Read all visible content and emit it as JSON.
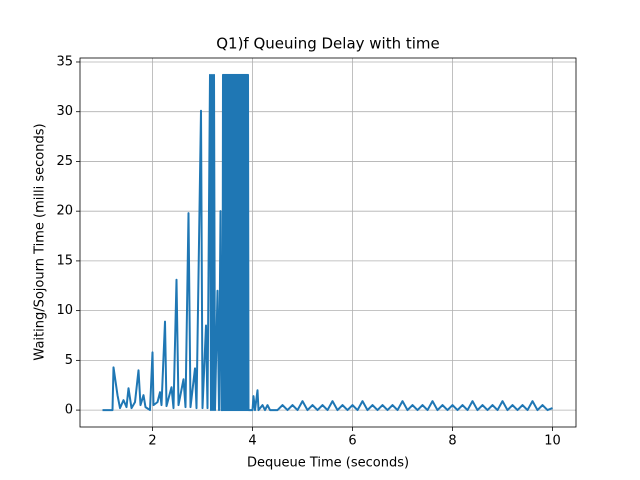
{
  "chart_data": {
    "type": "line",
    "title": "Q1)f Queuing Delay with time",
    "x_label": "Dequeue Time (seconds)",
    "y_label": "Waiting/Sojourn Time (milli seconds)",
    "xlim": [
      0.55,
      10.47
    ],
    "ylim": [
      -1.7,
      35.4
    ],
    "xticks": [
      2,
      4,
      6,
      8,
      10
    ],
    "yticks": [
      0,
      5,
      10,
      15,
      20,
      25,
      30,
      35
    ],
    "grid": true,
    "series": [
      {
        "color": "#1f77b4",
        "x": [
          1.0,
          1.2,
          1.22,
          1.3,
          1.35,
          1.42,
          1.48,
          1.52,
          1.58,
          1.65,
          1.72,
          1.76,
          1.82,
          1.86,
          1.95,
          2.0,
          2.02,
          2.1,
          2.15,
          2.18,
          2.25,
          2.28,
          2.38,
          2.42,
          2.48,
          2.52,
          2.62,
          2.66,
          2.72,
          2.76,
          2.85,
          2.88,
          2.97,
          3.0,
          3.07,
          3.1,
          3.15,
          3.17,
          3.19,
          3.21,
          3.23,
          3.25,
          3.3,
          3.33,
          3.36,
          3.38,
          3.4,
          3.41,
          3.42,
          3.43,
          3.44,
          3.45,
          3.46,
          3.47,
          3.48,
          3.49,
          3.5,
          3.51,
          3.52,
          3.53,
          3.54,
          3.55,
          3.56,
          3.57,
          3.58,
          3.59,
          3.6,
          3.61,
          3.62,
          3.63,
          3.64,
          3.65,
          3.66,
          3.67,
          3.68,
          3.69,
          3.7,
          3.71,
          3.72,
          3.73,
          3.74,
          3.75,
          3.76,
          3.77,
          3.78,
          3.79,
          3.8,
          3.81,
          3.82,
          3.83,
          3.84,
          3.85,
          3.86,
          3.87,
          3.88,
          3.89,
          3.9,
          3.91,
          3.92,
          4.0,
          4.02,
          4.05,
          4.1,
          4.12,
          4.2,
          4.25,
          4.3,
          4.35,
          4.5,
          4.6,
          4.7,
          4.8,
          4.9,
          5.0,
          5.1,
          5.2,
          5.3,
          5.4,
          5.5,
          5.6,
          5.7,
          5.8,
          5.9,
          6.0,
          6.1,
          6.2,
          6.3,
          6.4,
          6.5,
          6.6,
          6.7,
          6.8,
          6.9,
          7.0,
          7.1,
          7.2,
          7.3,
          7.4,
          7.5,
          7.6,
          7.7,
          7.8,
          7.9,
          8.0,
          8.1,
          8.2,
          8.3,
          8.4,
          8.5,
          8.6,
          8.7,
          8.8,
          8.9,
          9.0,
          9.1,
          9.2,
          9.3,
          9.4,
          9.5,
          9.6,
          9.7,
          9.8,
          9.9,
          10.0
        ],
        "values": [
          0,
          0,
          4.3,
          1.5,
          0.2,
          1.0,
          0.3,
          2.2,
          0.2,
          0.8,
          4.0,
          0.5,
          1.5,
          0.3,
          0,
          5.8,
          0.5,
          0.8,
          1.8,
          0.5,
          8.9,
          0.4,
          2.3,
          0.2,
          13.1,
          0.5,
          3.1,
          0.3,
          19.8,
          0.3,
          4.2,
          0.2,
          30.1,
          0.2,
          8.5,
          0.2,
          33.7,
          0,
          33.7,
          0,
          33.7,
          0,
          12,
          0,
          20,
          0,
          0,
          33.7,
          0,
          33.7,
          0,
          33.7,
          0,
          33.7,
          0,
          33.7,
          0,
          33.7,
          0,
          33.7,
          0,
          33.7,
          0,
          33.7,
          0,
          33.7,
          0,
          33.7,
          0,
          33.7,
          0,
          33.7,
          0,
          33.7,
          0,
          33.7,
          0,
          33.7,
          0,
          33.7,
          0,
          33.7,
          0,
          33.7,
          0,
          33.7,
          0,
          33.7,
          0,
          33.7,
          0,
          33.7,
          0,
          33.7,
          0,
          33.7,
          0,
          33.7,
          0,
          0,
          1.4,
          0,
          2.0,
          0,
          0.5,
          0,
          0.5,
          0,
          0,
          0.5,
          0,
          0.5,
          0,
          0.9,
          0,
          0.5,
          0,
          0.5,
          0,
          0.9,
          0,
          0.5,
          0,
          0.5,
          0,
          0.9,
          0,
          0.5,
          0,
          0.5,
          0,
          0.5,
          0,
          0.9,
          0,
          0.5,
          0,
          0.5,
          0,
          0.9,
          0,
          0.5,
          0,
          0.5,
          0,
          0.5,
          0,
          0.9,
          0,
          0.5,
          0,
          0.5,
          0,
          0.9,
          0,
          0.5,
          0,
          0.5,
          0,
          0.9,
          0,
          0.5,
          0,
          0.2
        ]
      }
    ]
  }
}
